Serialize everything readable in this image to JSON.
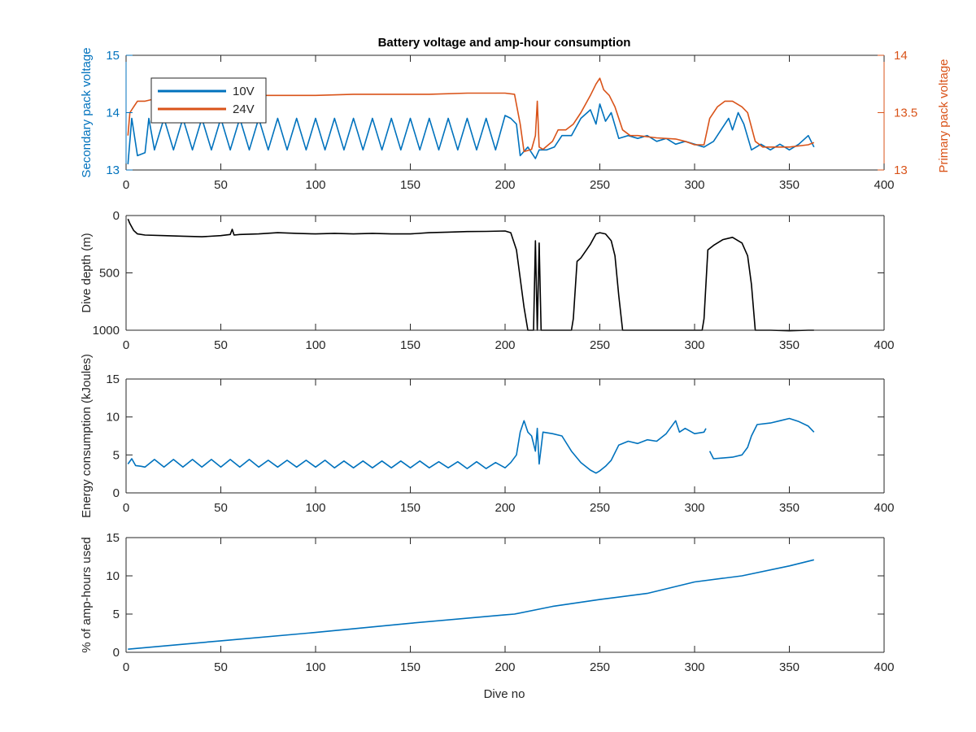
{
  "figure": {
    "title": "Battery voltage and amp-hour consumption",
    "xlabel": "Dive no"
  },
  "colors": {
    "blue": "#0072BD",
    "orange": "#D95319",
    "black": "#000000",
    "axis": "#262626"
  },
  "chart_data": [
    {
      "type": "line",
      "title": "Battery voltage and amp-hour consumption",
      "xlabel": "",
      "ylabel": "Secondary pack voltage",
      "ylabel_right": "Primary pack voltage",
      "xlim": [
        0,
        400
      ],
      "ylim": [
        13,
        15
      ],
      "ylim_right": [
        13,
        14
      ],
      "xticks": [
        0,
        50,
        100,
        150,
        200,
        250,
        300,
        350,
        400
      ],
      "yticks": [
        13,
        14,
        15
      ],
      "yticks_right": [
        13,
        13.5,
        14
      ],
      "grid": false,
      "legend": {
        "placement": "top-left",
        "entries": [
          "10V",
          "24V"
        ]
      },
      "series": [
        {
          "name": "10V",
          "axis": "left",
          "x": [
            1,
            3,
            6,
            10,
            12,
            15,
            20,
            25,
            30,
            35,
            40,
            45,
            50,
            55,
            60,
            65,
            70,
            75,
            80,
            85,
            90,
            95,
            100,
            105,
            110,
            115,
            120,
            125,
            130,
            135,
            140,
            145,
            150,
            155,
            160,
            165,
            170,
            175,
            180,
            185,
            190,
            195,
            200,
            203,
            206,
            208,
            212,
            216,
            218,
            222,
            226,
            230,
            235,
            240,
            245,
            248,
            250,
            253,
            256,
            260,
            265,
            270,
            275,
            280,
            285,
            290,
            295,
            300,
            305,
            310,
            315,
            318,
            320,
            323,
            326,
            330,
            335,
            340,
            345,
            350,
            355,
            360,
            363
          ],
          "y": [
            13.1,
            13.9,
            13.25,
            13.3,
            13.9,
            13.35,
            13.9,
            13.35,
            13.9,
            13.35,
            13.9,
            13.35,
            13.9,
            13.35,
            13.9,
            13.35,
            13.9,
            13.35,
            13.9,
            13.35,
            13.9,
            13.35,
            13.9,
            13.35,
            13.9,
            13.35,
            13.9,
            13.35,
            13.9,
            13.35,
            13.9,
            13.35,
            13.9,
            13.35,
            13.9,
            13.35,
            13.9,
            13.35,
            13.9,
            13.35,
            13.9,
            13.35,
            13.95,
            13.9,
            13.8,
            13.25,
            13.4,
            13.2,
            13.35,
            13.35,
            13.4,
            13.6,
            13.6,
            13.9,
            14.05,
            13.8,
            14.15,
            13.85,
            14.0,
            13.55,
            13.6,
            13.55,
            13.6,
            13.5,
            13.55,
            13.45,
            13.5,
            13.45,
            13.4,
            13.5,
            13.75,
            13.9,
            13.7,
            14.0,
            13.8,
            13.35,
            13.45,
            13.35,
            13.45,
            13.35,
            13.45,
            13.6,
            13.4
          ]
        },
        {
          "name": "24V",
          "axis": "right",
          "x": [
            1,
            2,
            4,
            6,
            8,
            10,
            15,
            20,
            30,
            40,
            50,
            60,
            70,
            80,
            90,
            100,
            120,
            140,
            160,
            180,
            200,
            205,
            208,
            210,
            214,
            216,
            217,
            218,
            220,
            225,
            228,
            232,
            236,
            240,
            245,
            248,
            250,
            252,
            255,
            258,
            262,
            266,
            270,
            280,
            290,
            295,
            300,
            305,
            308,
            312,
            316,
            320,
            325,
            328,
            332,
            336,
            340,
            350,
            360,
            363
          ],
          "y": [
            13.3,
            13.5,
            13.55,
            13.6,
            13.6,
            13.6,
            13.62,
            13.63,
            13.63,
            13.64,
            13.64,
            13.64,
            13.65,
            13.65,
            13.65,
            13.65,
            13.66,
            13.66,
            13.66,
            13.67,
            13.67,
            13.66,
            13.4,
            13.16,
            13.18,
            13.3,
            13.6,
            13.2,
            13.18,
            13.25,
            13.35,
            13.35,
            13.4,
            13.5,
            13.65,
            13.75,
            13.8,
            13.7,
            13.65,
            13.55,
            13.35,
            13.3,
            13.3,
            13.28,
            13.27,
            13.25,
            13.22,
            13.22,
            13.45,
            13.55,
            13.6,
            13.6,
            13.55,
            13.5,
            13.25,
            13.2,
            13.2,
            13.2,
            13.22,
            13.24
          ]
        }
      ]
    },
    {
      "type": "line",
      "title": "",
      "xlabel": "",
      "ylabel": "Dive depth (m)",
      "xlim": [
        0,
        400
      ],
      "ylim": [
        0,
        1000
      ],
      "y_reversed": true,
      "xticks": [
        0,
        50,
        100,
        150,
        200,
        250,
        300,
        350,
        400
      ],
      "yticks": [
        0,
        500,
        1000
      ],
      "grid": false,
      "series": [
        {
          "name": "",
          "x": [
            1,
            2,
            4,
            6,
            10,
            20,
            30,
            40,
            50,
            55,
            56,
            57,
            60,
            70,
            80,
            90,
            100,
            110,
            120,
            130,
            140,
            150,
            160,
            170,
            180,
            190,
            200,
            203,
            206,
            210,
            212,
            214,
            215,
            216,
            217,
            218,
            219,
            220,
            222,
            230,
            235,
            236,
            238,
            240,
            245,
            248,
            250,
            253,
            256,
            258,
            260,
            262,
            270,
            280,
            290,
            300,
            304,
            305,
            307,
            310,
            315,
            320,
            325,
            328,
            330,
            332,
            335,
            340,
            350,
            360,
            363
          ],
          "y": [
            30,
            70,
            130,
            160,
            170,
            175,
            180,
            185,
            175,
            165,
            120,
            170,
            165,
            160,
            150,
            155,
            160,
            155,
            160,
            155,
            160,
            160,
            150,
            145,
            140,
            138,
            135,
            150,
            300,
            800,
            1000,
            1000,
            1000,
            220,
            1000,
            240,
            1000,
            1000,
            1000,
            1000,
            1000,
            900,
            400,
            370,
            250,
            160,
            150,
            160,
            220,
            350,
            700,
            1000,
            1000,
            1000,
            1000,
            1000,
            1000,
            900,
            300,
            260,
            210,
            190,
            240,
            350,
            600,
            1000,
            1000,
            1000,
            1005,
            1000,
            1000
          ]
        }
      ]
    },
    {
      "type": "line",
      "title": "",
      "xlabel": "",
      "ylabel": "Energy consumption (kJoules)",
      "xlim": [
        0,
        400
      ],
      "ylim": [
        0,
        15
      ],
      "xticks": [
        0,
        50,
        100,
        150,
        200,
        250,
        300,
        350,
        400
      ],
      "yticks": [
        0,
        5,
        10,
        15
      ],
      "grid": false,
      "series": [
        {
          "name": "",
          "x": [
            1,
            3,
            5,
            8,
            10,
            15,
            20,
            25,
            30,
            35,
            40,
            45,
            50,
            55,
            60,
            65,
            70,
            75,
            80,
            85,
            90,
            95,
            100,
            105,
            110,
            115,
            120,
            125,
            130,
            135,
            140,
            145,
            150,
            155,
            160,
            165,
            170,
            175,
            180,
            185,
            190,
            195,
            200,
            203,
            206,
            208,
            210,
            212,
            214,
            216,
            217,
            218,
            220,
            225,
            230,
            235,
            240,
            245,
            248,
            250,
            253,
            256,
            260,
            265,
            270,
            275,
            280,
            285,
            290,
            292,
            295,
            300,
            305,
            306
          ],
          "y": [
            3.8,
            4.5,
            3.6,
            3.5,
            3.4,
            4.4,
            3.4,
            4.4,
            3.4,
            4.4,
            3.4,
            4.4,
            3.4,
            4.4,
            3.4,
            4.4,
            3.4,
            4.3,
            3.4,
            4.3,
            3.4,
            4.3,
            3.4,
            4.3,
            3.3,
            4.2,
            3.3,
            4.2,
            3.3,
            4.2,
            3.3,
            4.2,
            3.3,
            4.2,
            3.3,
            4.1,
            3.3,
            4.1,
            3.2,
            4.1,
            3.2,
            4.0,
            3.3,
            4.0,
            5.0,
            8.0,
            9.5,
            8.0,
            7.5,
            5.5,
            8.5,
            3.8,
            8.0,
            7.8,
            7.5,
            5.5,
            4.0,
            3.0,
            2.6,
            2.9,
            3.5,
            4.3,
            6.3,
            6.8,
            6.5,
            7.0,
            6.8,
            7.8,
            9.5,
            8.0,
            8.5,
            7.8,
            8.0,
            8.5
          ]
        },
        {
          "name": "",
          "x": [
            308,
            310,
            315,
            320,
            325,
            328,
            330,
            333,
            340,
            345,
            350,
            355,
            360,
            363
          ],
          "y": [
            5.5,
            4.5,
            4.6,
            4.7,
            5.0,
            6.0,
            7.5,
            9.0,
            9.2,
            9.5,
            9.8,
            9.4,
            8.8,
            8.0
          ]
        }
      ]
    },
    {
      "type": "line",
      "title": "",
      "xlabel": "Dive no",
      "ylabel": "% of amp-hours used",
      "xlim": [
        0,
        400
      ],
      "ylim": [
        0,
        15
      ],
      "xticks": [
        0,
        50,
        100,
        150,
        200,
        250,
        300,
        350,
        400
      ],
      "yticks": [
        0,
        5,
        10,
        15
      ],
      "grid": false,
      "series": [
        {
          "name": "",
          "x": [
            1,
            50,
            100,
            150,
            200,
            205,
            225,
            250,
            275,
            300,
            325,
            350,
            363
          ],
          "y": [
            0.4,
            1.5,
            2.6,
            3.8,
            4.9,
            5.0,
            6.0,
            6.9,
            7.7,
            9.2,
            10.0,
            11.3,
            12.1
          ]
        }
      ]
    }
  ]
}
